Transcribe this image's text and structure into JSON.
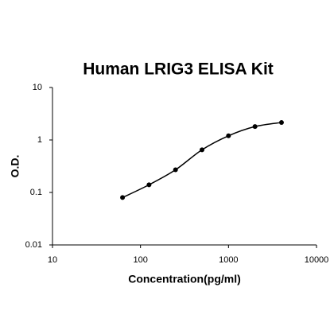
{
  "chart_data": {
    "type": "scatter",
    "title": "Human LRIG3 ELISA Kit",
    "x_label": "Concentration(pg/ml)",
    "y_label": "O.D.",
    "x": [
      62.5,
      125,
      250,
      500,
      1000,
      2000,
      4000
    ],
    "values": [
      0.08,
      0.14,
      0.27,
      0.65,
      1.2,
      1.8,
      2.15
    ],
    "color": "#000000",
    "fit_line": true,
    "x_log": true,
    "y_log": true,
    "xlim": [
      10,
      10000
    ],
    "xticks": [
      10,
      100,
      1000,
      10000
    ],
    "ylim": [
      0.01,
      10
    ],
    "yticks": [
      0.01,
      0.1,
      1,
      10
    ]
  }
}
